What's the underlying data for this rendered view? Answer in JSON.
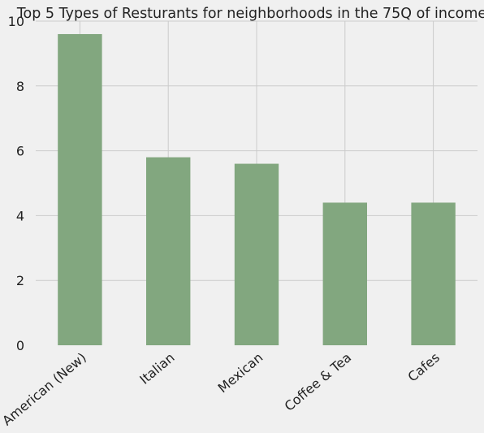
{
  "chart_data": {
    "type": "bar",
    "title": "Top 5 Types of Resturants for neighborhoods in the 75Q of income",
    "xlabel": "",
    "ylabel": "",
    "categories": [
      "American (New)",
      "Italian",
      "Mexican",
      "Coffee & Tea",
      "Cafes"
    ],
    "values": [
      9.6,
      5.8,
      5.6,
      4.4,
      4.4
    ],
    "ylim": [
      0,
      10
    ],
    "yticks": [
      "0",
      "2",
      "4",
      "6",
      "8",
      "10"
    ],
    "grid": true,
    "legend": "none",
    "colors": {
      "bar": "#82a77f",
      "background": "#f0f0f0",
      "grid": "#cbcbcb",
      "text": "#222222"
    }
  }
}
